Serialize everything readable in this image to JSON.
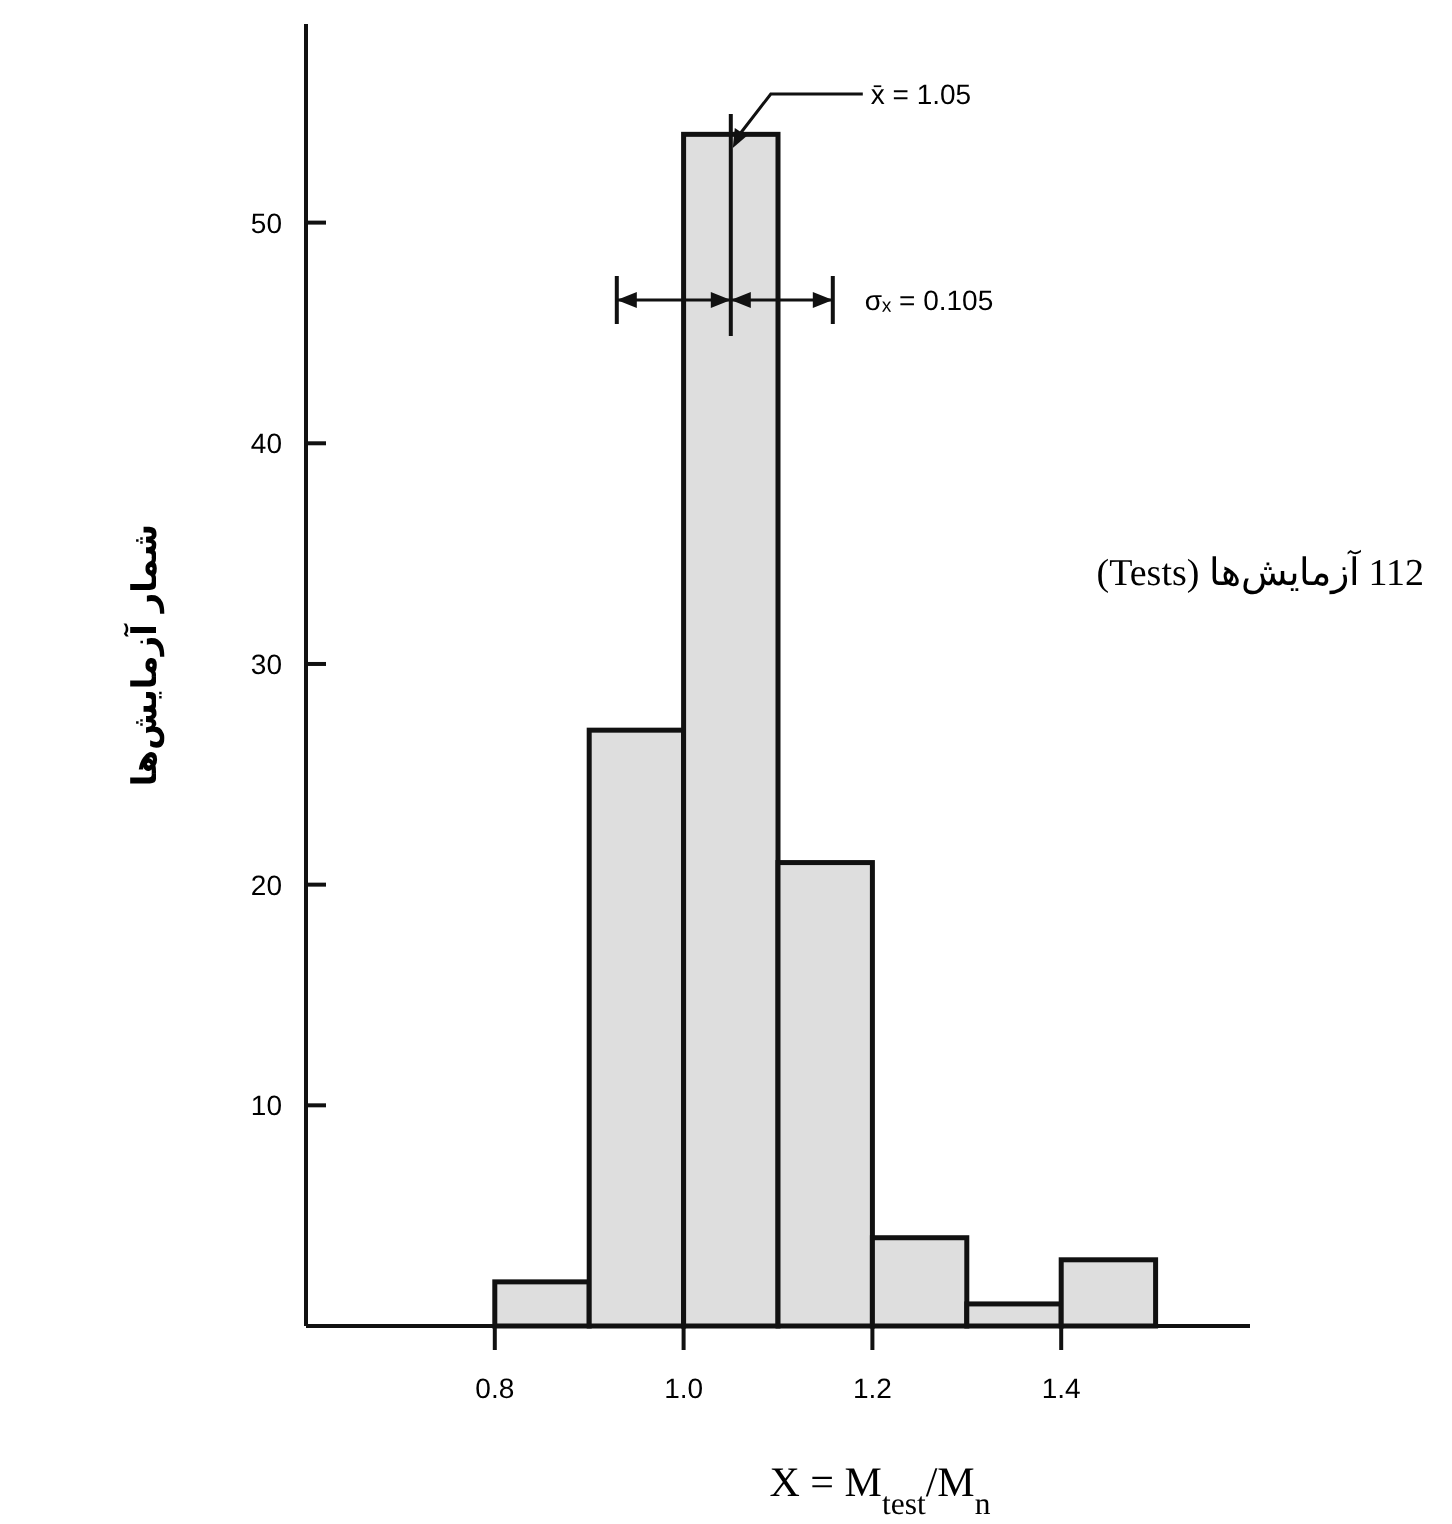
{
  "chart_data": {
    "type": "histogram",
    "bins": [
      0.8,
      0.9,
      1.0,
      1.1,
      1.2,
      1.3,
      1.4,
      1.5
    ],
    "values": [
      2,
      27,
      54,
      21,
      4,
      1,
      3
    ],
    "color": "#dedede",
    "xlim": [
      0.6,
      1.6
    ],
    "ylim": [
      0,
      59
    ],
    "xticks": [
      0.8,
      {
        "value": 1.0,
        "label": "1.0"
      },
      1.2,
      1.4
    ],
    "yticks": [
      10,
      20,
      30,
      40,
      50
    ],
    "xlabel": "X = M$_{test}$/M$_{n}$",
    "ylabel": "شمار آزمایش‌ها",
    "ref_lines": [
      {
        "axis": "x",
        "value": 1.05,
        "label": "x̄ = 1.05"
      }
    ],
    "annotations": [
      "σₓ = 0.105",
      "112 آزمایش‌ها (Tests)"
    ],
    "grid": false
  }
}
